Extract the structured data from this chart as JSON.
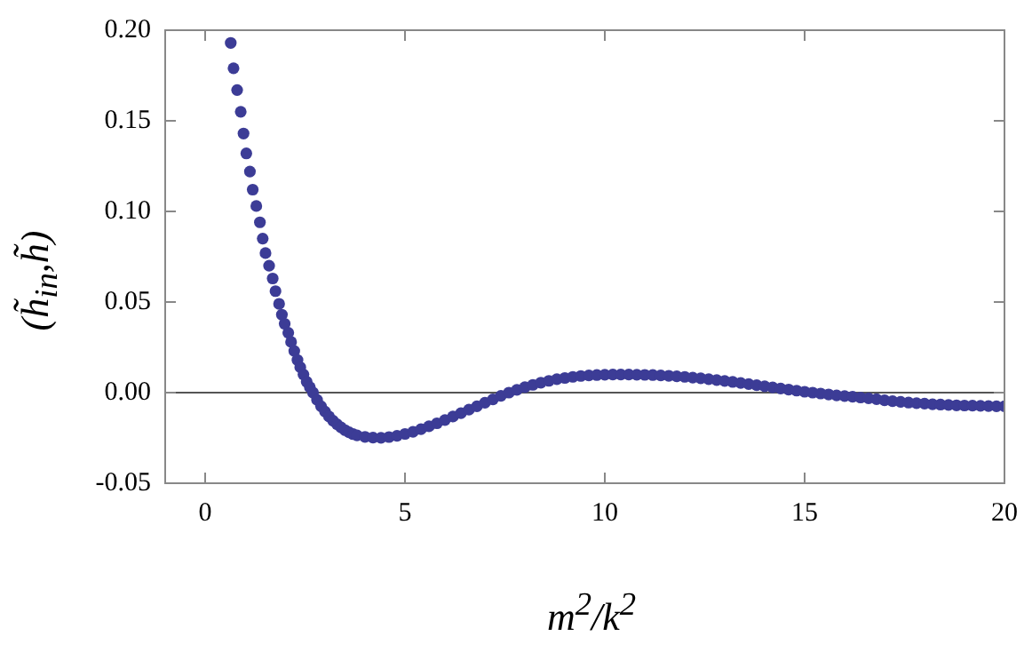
{
  "chart_data": {
    "type": "scatter",
    "xlabel": "m$^{2}$/k$^{2}$",
    "ylabel": "(h̃$_{in}$,h̃)",
    "xlim": [
      -1,
      20
    ],
    "xticks": [
      0,
      5,
      10,
      15,
      20
    ],
    "ylim": [
      -0.05,
      0.2
    ],
    "yticks": [
      {
        "value": -0.05,
        "label": "-0.05"
      },
      {
        "value": 0,
        "label": "0.00"
      },
      {
        "value": 0.05,
        "label": "0.05"
      },
      {
        "value": 0.1,
        "label": "0.10"
      },
      {
        "value": 0.15,
        "label": "0.15"
      },
      {
        "value": 0.2,
        "label": "0.20"
      }
    ],
    "grid": false,
    "legend": false,
    "marker": "circle",
    "ref_lines": [
      {
        "axis": "y",
        "value": 0,
        "color": "#555555"
      }
    ],
    "series": [
      {
        "color": "#3c3c96",
        "x": [
          0.64,
          0.71,
          0.8,
          0.89,
          0.96,
          1.03,
          1.12,
          1.19,
          1.28,
          1.37,
          1.44,
          1.51,
          1.6,
          1.69,
          1.76,
          1.85,
          1.92,
          1.99,
          2.08,
          2.15,
          2.23,
          2.31,
          2.38,
          2.46,
          2.54,
          2.62,
          2.7,
          2.8,
          2.9,
          3.0,
          3.1,
          3.2,
          3.3,
          3.4,
          3.5,
          3.6,
          3.7,
          3.8,
          4.0,
          4.2,
          4.4,
          4.6,
          4.8,
          5.0,
          5.2,
          5.4,
          5.6,
          5.8,
          6.0,
          6.2,
          6.4,
          6.6,
          6.8,
          7.0,
          7.2,
          7.4,
          7.6,
          7.8,
          8.0,
          8.2,
          8.4,
          8.6,
          8.8,
          9.0,
          9.2,
          9.4,
          9.6,
          9.8,
          10.0,
          10.2,
          10.4,
          10.6,
          10.8,
          11.0,
          11.2,
          11.4,
          11.6,
          11.8,
          12.0,
          12.2,
          12.4,
          12.6,
          12.8,
          13.0,
          13.2,
          13.4,
          13.6,
          13.8,
          14.0,
          14.2,
          14.4,
          14.6,
          14.8,
          15.0,
          15.2,
          15.4,
          15.6,
          15.8,
          16.0,
          16.2,
          16.4,
          16.6,
          16.8,
          17.0,
          17.2,
          17.4,
          17.6,
          17.8,
          18.0,
          18.2,
          18.4,
          18.6,
          18.8,
          19.0,
          19.2,
          19.4,
          19.6,
          19.8,
          20.0
        ],
        "values": [
          0.193,
          0.179,
          0.167,
          0.155,
          0.143,
          0.132,
          0.122,
          0.112,
          0.103,
          0.094,
          0.085,
          0.077,
          0.07,
          0.063,
          0.056,
          0.049,
          0.043,
          0.038,
          0.033,
          0.028,
          0.023,
          0.018,
          0.014,
          0.01,
          0.006,
          0.003,
          0.0,
          -0.004,
          -0.0075,
          -0.0105,
          -0.0132,
          -0.0155,
          -0.0175,
          -0.0192,
          -0.0207,
          -0.0219,
          -0.0229,
          -0.0236,
          -0.0244,
          -0.0248,
          -0.0249,
          -0.0245,
          -0.0238,
          -0.0228,
          -0.0216,
          -0.0202,
          -0.0186,
          -0.0169,
          -0.0151,
          -0.0132,
          -0.0113,
          -0.0094,
          -0.0075,
          -0.0056,
          -0.0037,
          -0.0018,
          0.0,
          0.0015,
          0.003,
          0.0043,
          0.0055,
          0.0065,
          0.0074,
          0.0081,
          0.0087,
          0.0092,
          0.0095,
          0.0097,
          0.0099,
          0.01,
          0.01,
          0.01,
          0.0099,
          0.0098,
          0.0097,
          0.0095,
          0.0093,
          0.009,
          0.0087,
          0.0083,
          0.0079,
          0.0074,
          0.0069,
          0.0064,
          0.0059,
          0.0053,
          0.0047,
          0.0041,
          0.0035,
          0.0029,
          0.0023,
          0.0017,
          0.0011,
          0.0005,
          0.0,
          -0.0005,
          -0.001,
          -0.0015,
          -0.0019,
          -0.0023,
          -0.0027,
          -0.0031,
          -0.0036,
          -0.0042,
          -0.0047,
          -0.0051,
          -0.0055,
          -0.0058,
          -0.0061,
          -0.0064,
          -0.0066,
          -0.0068,
          -0.007,
          -0.0071,
          -0.0072,
          -0.0073,
          -0.0074,
          -0.0075,
          -0.0075
        ]
      }
    ]
  }
}
